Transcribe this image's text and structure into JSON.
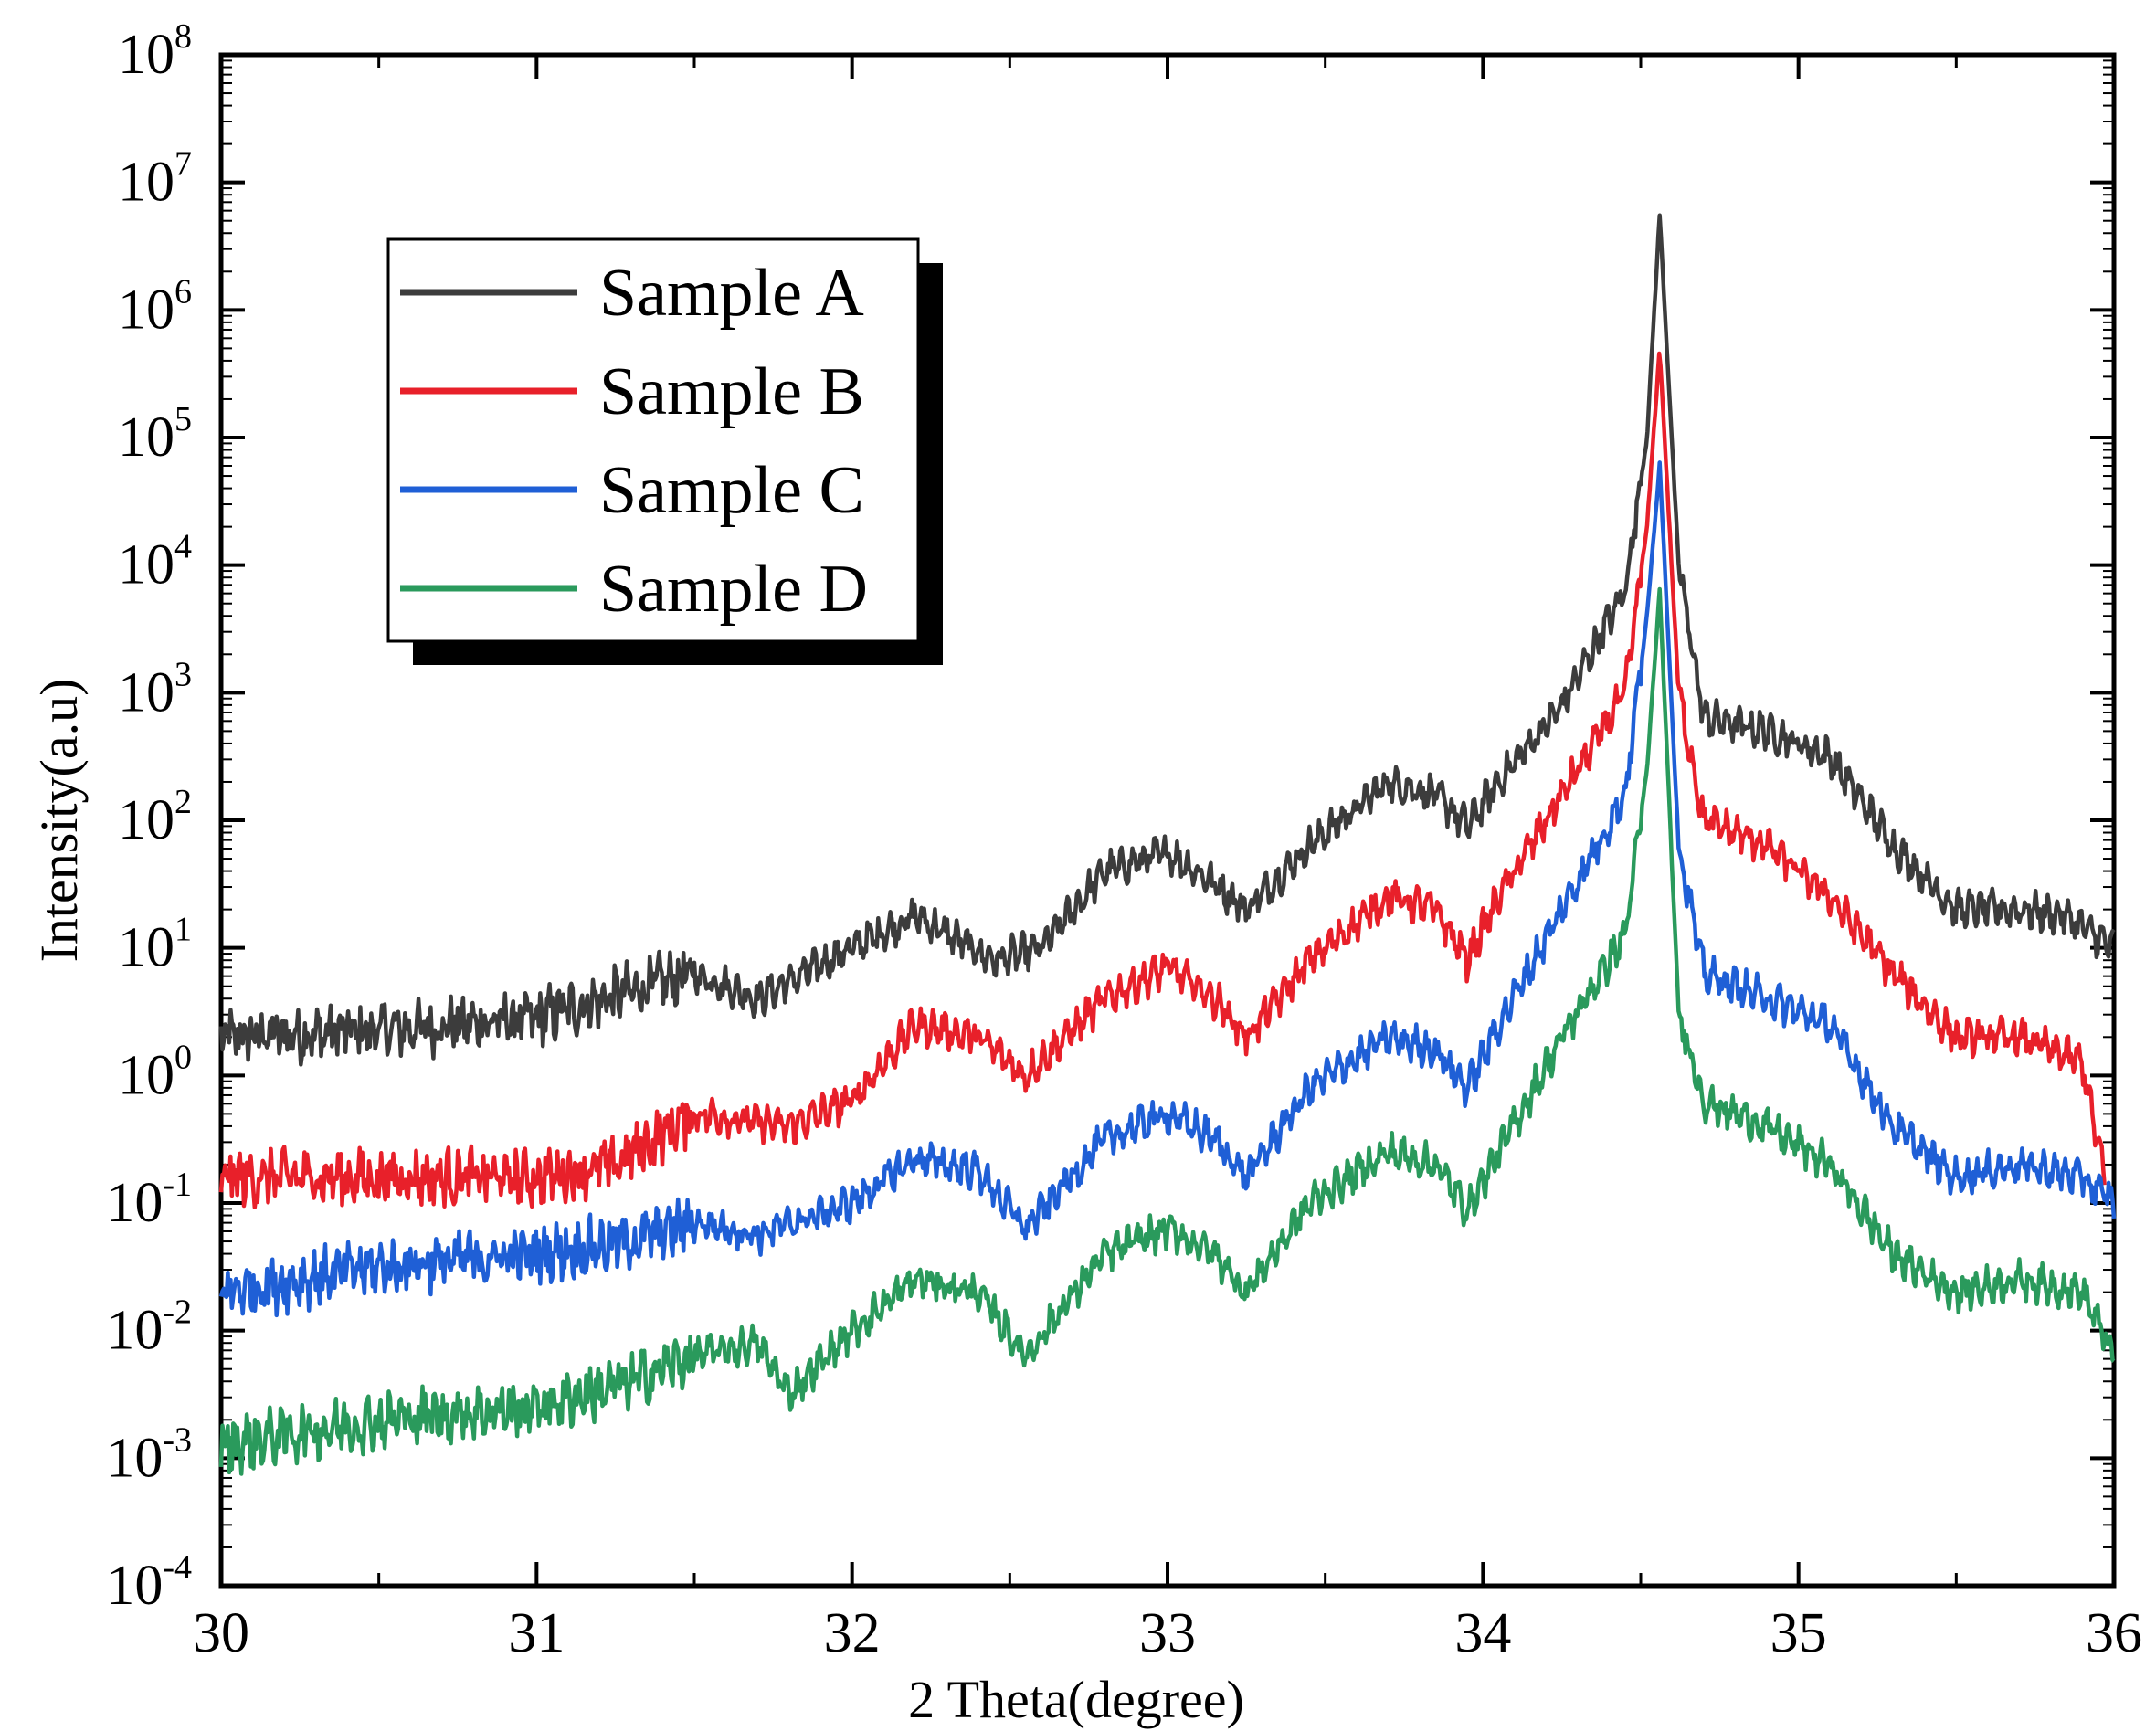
{
  "chart_data": {
    "type": "line",
    "title": "",
    "xlabel": "2 Theta(degree)",
    "ylabel": "Intensity(a.u)",
    "xlim": [
      30,
      36
    ],
    "ylim_log10": [
      -4,
      8
    ],
    "y_scale": "log",
    "grid": false,
    "x_ticks": [
      30,
      31,
      32,
      33,
      34,
      35,
      36
    ],
    "x_tick_labels": [
      "30",
      "31",
      "32",
      "33",
      "34",
      "35",
      "36"
    ],
    "y_ticks_log10": [
      -4,
      -3,
      -2,
      -1,
      0,
      1,
      2,
      3,
      4,
      5,
      6,
      7,
      8
    ],
    "y_tick_base": "10",
    "y_tick_exponents": [
      "-4",
      "-3",
      "-2",
      "-1",
      "0",
      "1",
      "2",
      "3",
      "4",
      "5",
      "6",
      "7",
      "8"
    ],
    "legend_position": "top-left",
    "series": [
      {
        "name": "Sample A",
        "color": "#3c3c3c",
        "x": [
          30.0,
          30.5,
          31.0,
          31.5,
          31.7,
          32.0,
          32.2,
          32.45,
          32.6,
          32.8,
          33.0,
          33.15,
          33.25,
          33.45,
          33.7,
          33.85,
          33.95,
          34.05,
          34.25,
          34.45,
          34.52,
          34.56,
          34.62,
          34.7,
          34.9,
          35.1,
          35.3,
          35.5,
          35.7,
          35.85,
          36.0
        ],
        "log10_values": [
          0.3,
          0.35,
          0.45,
          0.8,
          0.6,
          1.0,
          1.25,
          0.9,
          1.0,
          1.6,
          1.75,
          1.5,
          1.3,
          1.8,
          2.3,
          2.2,
          1.95,
          2.3,
          2.9,
          3.8,
          5.0,
          6.75,
          4.0,
          2.8,
          2.7,
          2.5,
          1.8,
          1.3,
          1.3,
          1.25,
          1.0
        ]
      },
      {
        "name": "Sample B",
        "color": "#e8202a",
        "x": [
          30.0,
          30.5,
          31.0,
          31.25,
          31.5,
          31.8,
          32.0,
          32.2,
          32.4,
          32.55,
          32.8,
          33.0,
          33.15,
          33.25,
          33.45,
          33.7,
          33.85,
          33.95,
          34.05,
          34.25,
          34.45,
          34.52,
          34.56,
          34.62,
          34.7,
          34.9,
          35.1,
          35.3,
          35.5,
          35.7,
          35.9,
          35.97
        ],
        "log10_values": [
          -0.8,
          -0.8,
          -0.8,
          -0.7,
          -0.3,
          -0.4,
          -0.2,
          0.4,
          0.3,
          0.0,
          0.6,
          0.85,
          0.6,
          0.3,
          0.9,
          1.4,
          1.3,
          0.9,
          1.4,
          2.2,
          3.0,
          4.3,
          5.7,
          3.0,
          2.0,
          1.8,
          1.4,
          0.8,
          0.3,
          0.3,
          0.1,
          -0.8
        ]
      },
      {
        "name": "Sample C",
        "color": "#1f5fd6",
        "x": [
          30.0,
          30.5,
          31.0,
          31.3,
          31.5,
          31.7,
          32.0,
          32.2,
          32.4,
          32.55,
          32.8,
          33.0,
          33.15,
          33.25,
          33.45,
          33.7,
          33.85,
          33.95,
          34.05,
          34.25,
          34.45,
          34.52,
          34.56,
          34.62,
          34.7,
          34.9,
          35.1,
          35.3,
          35.5,
          35.7,
          35.9,
          36.0
        ],
        "log10_values": [
          -1.7,
          -1.5,
          -1.4,
          -1.3,
          -1.15,
          -1.25,
          -1.0,
          -0.65,
          -0.75,
          -1.2,
          -0.5,
          -0.3,
          -0.5,
          -0.8,
          -0.1,
          0.3,
          0.2,
          -0.1,
          0.4,
          1.3,
          2.2,
          3.6,
          4.8,
          1.8,
          0.8,
          0.6,
          0.4,
          -0.4,
          -0.8,
          -0.7,
          -0.8,
          -1.0
        ]
      },
      {
        "name": "Sample D",
        "color": "#2a9a5c",
        "x": [
          30.0,
          30.5,
          31.0,
          31.3,
          31.5,
          31.7,
          31.8,
          32.0,
          32.2,
          32.4,
          32.55,
          32.8,
          33.0,
          33.15,
          33.25,
          33.45,
          33.7,
          33.85,
          33.95,
          34.05,
          34.25,
          34.45,
          34.52,
          34.56,
          34.62,
          34.7,
          34.9,
          35.1,
          35.3,
          35.5,
          35.7,
          35.9,
          36.0
        ],
        "log10_values": [
          -2.9,
          -2.7,
          -2.6,
          -2.4,
          -2.2,
          -2.1,
          -2.5,
          -2.0,
          -1.6,
          -1.7,
          -2.2,
          -1.4,
          -1.2,
          -1.4,
          -1.7,
          -1.0,
          -0.6,
          -0.7,
          -1.05,
          -0.6,
          0.3,
          1.1,
          2.4,
          3.8,
          0.5,
          -0.2,
          -0.4,
          -0.7,
          -1.4,
          -1.7,
          -1.6,
          -1.7,
          -2.2
        ]
      }
    ]
  }
}
